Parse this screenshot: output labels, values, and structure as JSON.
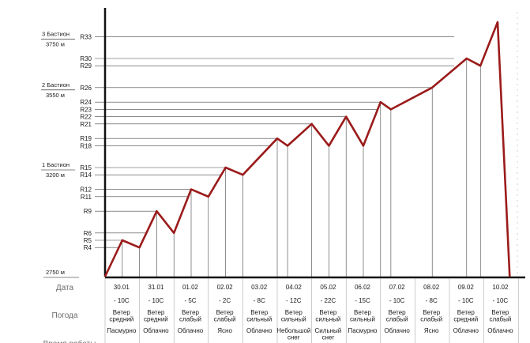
{
  "chart_data": {
    "type": "line",
    "title": "",
    "xlabel": "",
    "ylabel": "",
    "axis_start_label": "2750 м",
    "levels": [
      {
        "label": "R4",
        "rank": 4
      },
      {
        "label": "R5",
        "rank": 5
      },
      {
        "label": "R6",
        "rank": 6
      },
      {
        "label": "R9",
        "rank": 9
      },
      {
        "label": "R11",
        "rank": 11
      },
      {
        "label": "R12",
        "rank": 12
      },
      {
        "label": "R14",
        "rank": 14
      },
      {
        "label": "R15",
        "rank": 15
      },
      {
        "label": "R18",
        "rank": 18
      },
      {
        "label": "R19",
        "rank": 19
      },
      {
        "label": "R21",
        "rank": 21
      },
      {
        "label": "R22",
        "rank": 22
      },
      {
        "label": "R23",
        "rank": 23
      },
      {
        "label": "R24",
        "rank": 24
      },
      {
        "label": "R26",
        "rank": 26
      },
      {
        "label": "R29",
        "rank": 29
      },
      {
        "label": "R30",
        "rank": 30
      },
      {
        "label": "R33",
        "rank": 33
      }
    ],
    "bastions": [
      {
        "name": "1 Бастион",
        "altitude": "3200 м",
        "rank": 15
      },
      {
        "name": "2 Бастион",
        "altitude": "3550 м",
        "rank": 26
      },
      {
        "name": "3 Бастион",
        "altitude": "3750 м",
        "rank": 33
      }
    ],
    "series": [
      {
        "points": [
          {
            "day": 0,
            "level": 0
          },
          {
            "day": 0.5,
            "level": 5
          },
          {
            "day": 1,
            "level": 4
          },
          {
            "day": 1.5,
            "level": 9
          },
          {
            "day": 2,
            "level": 6
          },
          {
            "day": 2.5,
            "level": 12
          },
          {
            "day": 3,
            "level": 11
          },
          {
            "day": 3.5,
            "level": 15
          },
          {
            "day": 4,
            "level": 14
          },
          {
            "day": 5,
            "level": 19
          },
          {
            "day": 5.3,
            "level": 18
          },
          {
            "day": 6,
            "level": 21
          },
          {
            "day": 6.5,
            "level": 18
          },
          {
            "day": 7,
            "level": 22
          },
          {
            "day": 7.5,
            "level": 18
          },
          {
            "day": 8,
            "level": 24
          },
          {
            "day": 8.3,
            "level": 23
          },
          {
            "day": 9.5,
            "level": 26
          },
          {
            "day": 10.5,
            "level": 30
          },
          {
            "day": 10.9,
            "level": 29
          },
          {
            "day": 11.4,
            "level": 35
          },
          {
            "day": 11.75,
            "level": 0
          }
        ]
      }
    ],
    "table": {
      "row_labels": {
        "date": "Дата",
        "weather": "Погода",
        "work_time": "Время работы"
      },
      "columns": [
        {
          "date": "30.01",
          "temp": "- 10С",
          "wind": [
            "Ветер",
            "средний"
          ],
          "sky": [
            "Пасмурно"
          ]
        },
        {
          "date": "31.01",
          "temp": "- 10С",
          "wind": [
            "Ветер",
            "средний"
          ],
          "sky": [
            "Облачно"
          ]
        },
        {
          "date": "01.02",
          "temp": "- 5С",
          "wind": [
            "Ветер",
            "слабый"
          ],
          "sky": [
            "Облачно"
          ]
        },
        {
          "date": "02.02",
          "temp": "- 2С",
          "wind": [
            "Ветер",
            "слабый"
          ],
          "sky": [
            "Ясно"
          ]
        },
        {
          "date": "03.02",
          "temp": "- 8С",
          "wind": [
            "Ветер",
            "сильный"
          ],
          "sky": [
            "Облачно"
          ]
        },
        {
          "date": "04.02",
          "temp": "- 12С",
          "wind": [
            "Ветер",
            "сильный"
          ],
          "sky": [
            "Небольшой",
            "снег"
          ]
        },
        {
          "date": "05.02",
          "temp": "- 22С",
          "wind": [
            "Ветер",
            "сильный"
          ],
          "sky": [
            "Сильный",
            "снег"
          ]
        },
        {
          "date": "06.02",
          "temp": "- 15С",
          "wind": [
            "Ветер",
            "сильный"
          ],
          "sky": [
            "Пасмурно"
          ]
        },
        {
          "date": "07.02",
          "temp": "- 10С",
          "wind": [
            "Ветер",
            "слабый"
          ],
          "sky": [
            "Облачно"
          ]
        },
        {
          "date": "08.02",
          "temp": "- 8С",
          "wind": [
            "Ветер",
            "слабый"
          ],
          "sky": [
            "Ясно"
          ]
        },
        {
          "date": "09.02",
          "temp": "- 10С",
          "wind": [
            "Ветер",
            "средний"
          ],
          "sky": [
            "Облачно"
          ]
        },
        {
          "date": "10.02",
          "temp": "- 10С",
          "wind": [
            "Ветер",
            "слабый"
          ],
          "sky": [
            "Облачно"
          ]
        }
      ]
    },
    "colors": {
      "line": "#9b1b1b",
      "grid": "#444444",
      "axis": "#111111"
    }
  }
}
